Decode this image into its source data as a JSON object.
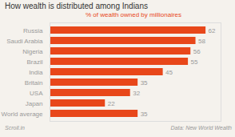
{
  "chart_data": {
    "type": "bar",
    "orientation": "horizontal",
    "title": "How wealth is distributed among Indians",
    "subtitle": "% of wealth owned by millionaires",
    "categories": [
      "World average",
      "Japan",
      "USA",
      "Britain",
      "India",
      "Brazil",
      "Nigeria",
      "Saudi Arabia",
      "Russia"
    ],
    "values": [
      35,
      22,
      32,
      35,
      45,
      55,
      56,
      58,
      62
    ],
    "color": "#e8471a",
    "xlim": [
      0,
      68
    ],
    "data_labels": true,
    "tick_labels": "y",
    "grid": false,
    "annotations": [
      "Scroll.in",
      "Data: New World Wealth"
    ]
  }
}
